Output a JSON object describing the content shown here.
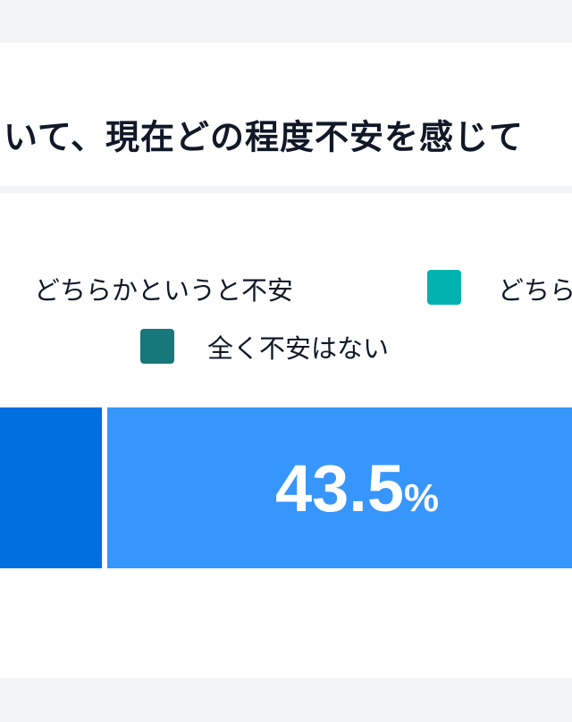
{
  "title": "いて、現在どの程度不安を感じて",
  "chart_data": {
    "type": "bar",
    "orientation": "horizontal-stacked",
    "title": "いて、現在どの程度不安を感じて",
    "legend": {
      "placement": "top",
      "entries": [
        {
          "label": "どちらかというと不安",
          "color": "#3796fb"
        },
        {
          "label": "どちら",
          "color": "#00b3b0"
        },
        {
          "label": "全く不安はない",
          "color": "#17777a"
        }
      ]
    },
    "series": [
      {
        "name": "どちらかというと不安",
        "value": 43.5,
        "color": "#3796fb"
      },
      {
        "name": "どちら",
        "value": null,
        "color": "#00b3b0"
      },
      {
        "name": "全く不安はない",
        "value": null,
        "color": "#17777a"
      }
    ],
    "visible_segment_colors": [
      "#006fe0",
      "#3796fb"
    ],
    "data_labels": [
      {
        "value": "43.5",
        "unit": "%"
      }
    ]
  }
}
